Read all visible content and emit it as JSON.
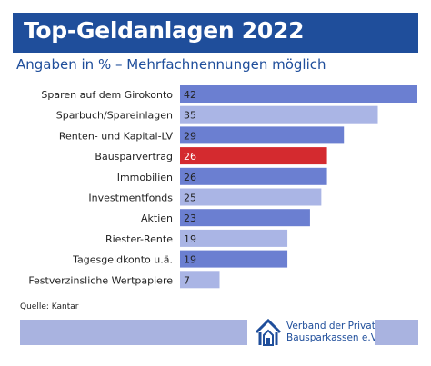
{
  "header": {
    "title": "Top-Geldanlagen 2022",
    "subtitle": "Angaben in % – Mehrfachnennungen möglich"
  },
  "chart_data": {
    "type": "bar",
    "orientation": "horizontal",
    "title": "Top-Geldanlagen 2022",
    "subtitle": "Angaben in % – Mehrfachnennungen möglich",
    "categories": [
      "Sparen auf dem Girokonto",
      "Sparbuch/Spareinlagen",
      "Renten- und Kapital-LV",
      "Bausparvertrag",
      "Immobilien",
      "Investmentfonds",
      "Aktien",
      "Riester-Rente",
      "Tagesgeldkonto u.ä.",
      "Festverzinsliche Wertpapiere"
    ],
    "values": [
      42,
      35,
      29,
      26,
      26,
      25,
      23,
      19,
      19,
      7
    ],
    "bar_colors": [
      "#6b7fd1",
      "#aab5e5",
      "#6b7fd1",
      "#d42a2f",
      "#6b7fd1",
      "#aab5e5",
      "#6b7fd1",
      "#aab5e5",
      "#6b7fd1",
      "#aab5e5"
    ],
    "xlim": [
      0,
      42
    ],
    "grid": false,
    "legend": "none"
  },
  "footer": {
    "source": "Quelle: Kantar",
    "logo_line1": "Verband der Privaten",
    "logo_line2": "Bausparkassen e.V.",
    "logo_icon": "house-logo-icon",
    "bar_color": "#a9b3e0",
    "accent": "#1f4e9b"
  }
}
